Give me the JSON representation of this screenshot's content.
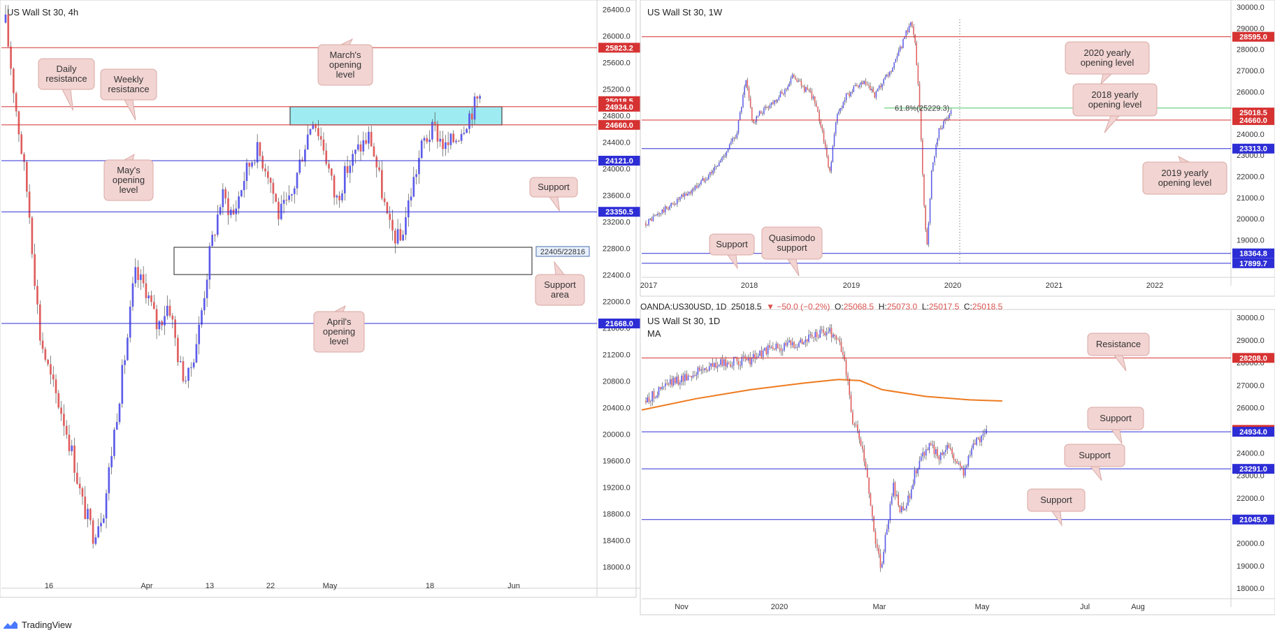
{
  "brand": {
    "name": "TradingView",
    "icon": "tradingview-logo-icon"
  },
  "info_bar": {
    "symbol": "OANDA:US30USD, 1D",
    "last": "25018.5",
    "change": "▼ −50.0 (−0.2%)",
    "o_label": "O:",
    "o": "25068.5",
    "h_label": "H:",
    "h": "25073.0",
    "l_label": "L:",
    "l": "25017.5",
    "c_label": "C:",
    "c": "25018.5"
  },
  "colors": {
    "up_candle": "#5b5bea",
    "down_candle": "#e05d5d",
    "blue_level": "#2d2dd6",
    "red_level": "#d63232",
    "green_level": "#4ec86a",
    "ma_line": "#ee7a1e",
    "zone_fill": "#8de9f0",
    "callout_fill": "#f2d4d2"
  },
  "chart_data": [
    {
      "type": "candlestick",
      "title": "US Wall St 30, 4h",
      "ylim": [
        17700,
        26500
      ],
      "y_ticks": [
        "26400.0",
        "26000.0",
        "25600.0",
        "25200.0",
        "24800.0",
        "24400.0",
        "24000.0",
        "23600.0",
        "23200.0",
        "22800.0",
        "22400.0",
        "22000.0",
        "21600.0",
        "21200.0",
        "20800.0",
        "20400.0",
        "20000.0",
        "19600.0",
        "19200.0",
        "18800.0",
        "18400.0",
        "18000.0"
      ],
      "x_ticks": [
        "16",
        "Apr",
        "13",
        "22",
        "May",
        "18",
        "Jun"
      ],
      "levels": [
        {
          "value": 25823.2,
          "label": "25823.2",
          "color": "red"
        },
        {
          "value": 25018.5,
          "label": "25018.5",
          "color": "red"
        },
        {
          "value": 24934.0,
          "label": "24934.0",
          "color": "red"
        },
        {
          "value": 24660.0,
          "label": "24660.0",
          "color": "red"
        },
        {
          "value": 24121.0,
          "label": "24121.0",
          "color": "blue"
        },
        {
          "value": 23350.5,
          "label": "23350.5",
          "color": "blue"
        },
        {
          "value": 21668.0,
          "label": "21668.0",
          "color": "blue"
        }
      ],
      "zones": [
        {
          "from": 24660,
          "to": 24934,
          "kind": "resistance-zone"
        },
        {
          "from": 22405,
          "to": 22816,
          "kind": "support-area",
          "label": "22405/22816"
        }
      ],
      "annotations": [
        {
          "text": "Daily\nresistance"
        },
        {
          "text": "Weekly\nresistance"
        },
        {
          "text": "March's\nopening\nlevel"
        },
        {
          "text": "May's\nopening\nlevel"
        },
        {
          "text": "Support"
        },
        {
          "text": "Support\narea"
        },
        {
          "text": "April's\nopening\nlevel"
        }
      ],
      "price_path": [
        [
          0,
          26200
        ],
        [
          3,
          24800
        ],
        [
          6,
          23500
        ],
        [
          9,
          21500
        ],
        [
          12,
          20800
        ],
        [
          15,
          20300
        ],
        [
          18,
          19600
        ],
        [
          20,
          19000
        ],
        [
          23,
          18500
        ],
        [
          26,
          18900
        ],
        [
          29,
          20200
        ],
        [
          32,
          21400
        ],
        [
          34,
          22400
        ],
        [
          37,
          22200
        ],
        [
          40,
          21600
        ],
        [
          43,
          22000
        ],
        [
          46,
          21000
        ],
        [
          48,
          20800
        ],
        [
          51,
          21600
        ],
        [
          54,
          22800
        ],
        [
          57,
          23600
        ],
        [
          60,
          23300
        ],
        [
          63,
          23900
        ],
        [
          66,
          24300
        ],
        [
          69,
          24000
        ],
        [
          72,
          23300
        ],
        [
          75,
          23500
        ],
        [
          78,
          24200
        ],
        [
          81,
          24800
        ],
        [
          84,
          24300
        ],
        [
          87,
          23500
        ],
        [
          90,
          24000
        ],
        [
          93,
          24300
        ],
        [
          96,
          24500
        ],
        [
          99,
          23700
        ],
        [
          101,
          23100
        ],
        [
          104,
          22900
        ],
        [
          107,
          23700
        ],
        [
          110,
          24400
        ],
        [
          113,
          24600
        ],
        [
          116,
          24300
        ],
        [
          119,
          24500
        ],
        [
          122,
          24800
        ],
        [
          125,
          25100
        ]
      ]
    },
    {
      "type": "candlestick",
      "title": "US Wall St 30, 1W",
      "ylim": [
        17300,
        30200
      ],
      "y_ticks": [
        "30000.0",
        "29000.0",
        "28000.0",
        "27000.0",
        "26000.0",
        "25000.0",
        "24000.0",
        "23000.0",
        "22000.0",
        "21000.0",
        "20000.0",
        "19000.0",
        "18000.0"
      ],
      "x_ticks": [
        "2017",
        "2018",
        "2019",
        "2020",
        "2021",
        "2022"
      ],
      "levels": [
        {
          "value": 28595.0,
          "label": "28595.0",
          "color": "red"
        },
        {
          "value": 25018.5,
          "label": "25018.5",
          "color": "red"
        },
        {
          "value": 24660.0,
          "label": "24660.0",
          "color": "red"
        },
        {
          "value": 23313.0,
          "label": "23313.0",
          "color": "blue"
        },
        {
          "value": 18364.8,
          "label": "18364.8",
          "color": "blue"
        },
        {
          "value": 17899.7,
          "label": "17899.7",
          "color": "blue"
        }
      ],
      "fib": {
        "value": 25229.3,
        "label": "61.8%(25229.3)"
      },
      "annotations": [
        {
          "text": "2020 yearly\nopening level"
        },
        {
          "text": "2018 yearly\nopening level"
        },
        {
          "text": "2019 yearly\nopening level"
        },
        {
          "text": "Support"
        },
        {
          "text": "Quasimodo\nsupport"
        }
      ],
      "price_path": [
        [
          0,
          19800
        ],
        [
          10,
          20600
        ],
        [
          20,
          21400
        ],
        [
          30,
          22500
        ],
        [
          38,
          24000
        ],
        [
          42,
          26500
        ],
        [
          45,
          24500
        ],
        [
          48,
          25000
        ],
        [
          52,
          25400
        ],
        [
          58,
          26000
        ],
        [
          62,
          26800
        ],
        [
          66,
          26200
        ],
        [
          70,
          25800
        ],
        [
          74,
          24200
        ],
        [
          77,
          22100
        ],
        [
          80,
          24800
        ],
        [
          84,
          25800
        ],
        [
          88,
          26200
        ],
        [
          92,
          26400
        ],
        [
          96,
          25800
        ],
        [
          100,
          26500
        ],
        [
          104,
          27200
        ],
        [
          108,
          28400
        ],
        [
          111,
          29300
        ],
        [
          113,
          28400
        ],
        [
          115,
          24800
        ],
        [
          117,
          20000
        ],
        [
          118,
          18800
        ],
        [
          120,
          22500
        ],
        [
          123,
          24200
        ],
        [
          126,
          24700
        ],
        [
          128,
          25000
        ]
      ]
    },
    {
      "type": "candlestick",
      "title": "US Wall St 30, 1D",
      "subtitle": "MA",
      "ylim": [
        17600,
        30200
      ],
      "y_ticks": [
        "30000.0",
        "29000.0",
        "28000.0",
        "27000.0",
        "26000.0",
        "25000.0",
        "24000.0",
        "23000.0",
        "22000.0",
        "21000.0",
        "20000.0",
        "19000.0",
        "18000.0"
      ],
      "x_ticks": [
        "Nov",
        "2020",
        "Mar",
        "May",
        "Jul",
        "Aug"
      ],
      "levels": [
        {
          "value": 28208.0,
          "label": "28208.0",
          "color": "red"
        },
        {
          "value": 25018.5,
          "label": "25018.5",
          "color": "red"
        },
        {
          "value": 24934.0,
          "label": "24934.0",
          "color": "blue"
        },
        {
          "value": 23291.0,
          "label": "23291.0",
          "color": "blue"
        },
        {
          "value": 21045.0,
          "label": "21045.0",
          "color": "blue"
        }
      ],
      "ma": [
        [
          0,
          25900
        ],
        [
          25,
          26400
        ],
        [
          50,
          26800
        ],
        [
          75,
          27100
        ],
        [
          90,
          27250
        ],
        [
          100,
          27200
        ],
        [
          110,
          26800
        ],
        [
          130,
          26500
        ],
        [
          150,
          26350
        ],
        [
          165,
          26300
        ]
      ],
      "annotations": [
        {
          "text": "Resistance"
        },
        {
          "text": "Support"
        },
        {
          "text": "Support"
        },
        {
          "text": "Support"
        }
      ],
      "price_path": [
        [
          0,
          26300
        ],
        [
          10,
          27000
        ],
        [
          20,
          27400
        ],
        [
          30,
          27800
        ],
        [
          40,
          28000
        ],
        [
          50,
          28100
        ],
        [
          60,
          28600
        ],
        [
          70,
          28800
        ],
        [
          80,
          29100
        ],
        [
          88,
          29400
        ],
        [
          92,
          29200
        ],
        [
          96,
          28300
        ],
        [
          98,
          27000
        ],
        [
          100,
          25500
        ],
        [
          104,
          24500
        ],
        [
          108,
          22500
        ],
        [
          111,
          20200
        ],
        [
          114,
          19000
        ],
        [
          117,
          20800
        ],
        [
          120,
          22500
        ],
        [
          123,
          21400
        ],
        [
          126,
          21500
        ],
        [
          130,
          23000
        ],
        [
          134,
          24000
        ],
        [
          138,
          24300
        ],
        [
          142,
          23800
        ],
        [
          146,
          24400
        ],
        [
          150,
          23700
        ],
        [
          154,
          23200
        ],
        [
          158,
          24200
        ],
        [
          162,
          24700
        ],
        [
          165,
          25000
        ]
      ]
    }
  ]
}
